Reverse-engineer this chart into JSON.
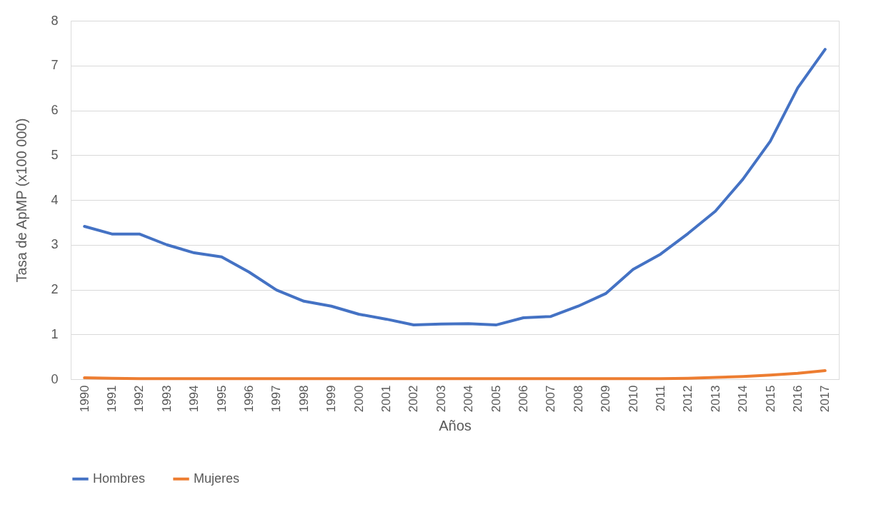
{
  "chart_data": {
    "type": "line",
    "xlabel": "Años",
    "ylabel": "Tasa de ApMP (x100 000)",
    "categories": [
      "1990",
      "1991",
      "1992",
      "1993",
      "1994",
      "1995",
      "1996",
      "1997",
      "1998",
      "1999",
      "2000",
      "2001",
      "2002",
      "2003",
      "2004",
      "2005",
      "2006",
      "2007",
      "2008",
      "2009",
      "2010",
      "2011",
      "2012",
      "2013",
      "2014",
      "2015",
      "2016",
      "2017"
    ],
    "series": [
      {
        "name": "Hombres",
        "color": "#4472c4",
        "values": [
          3.41,
          3.24,
          3.24,
          3.0,
          2.82,
          2.73,
          2.39,
          1.99,
          1.74,
          1.63,
          1.45,
          1.34,
          1.21,
          1.23,
          1.24,
          1.21,
          1.37,
          1.4,
          1.63,
          1.91,
          2.45,
          2.79,
          3.25,
          3.75,
          4.46,
          5.31,
          6.5,
          7.36
        ]
      },
      {
        "name": "Mujeres",
        "color": "#ed7d31",
        "values": [
          0.03,
          0.02,
          0.01,
          0.01,
          0.01,
          0.01,
          0.01,
          0.01,
          0.01,
          0.01,
          0.01,
          0.01,
          0.01,
          0.01,
          0.01,
          0.01,
          0.01,
          0.01,
          0.01,
          0.01,
          0.01,
          0.01,
          0.02,
          0.04,
          0.06,
          0.09,
          0.13,
          0.19
        ]
      }
    ],
    "ylim": [
      0,
      8
    ],
    "yticks": [
      0,
      1,
      2,
      3,
      4,
      5,
      6,
      7,
      8
    ],
    "grid": "y",
    "legend": "bottom",
    "marker": "none",
    "line_style": "solid"
  }
}
